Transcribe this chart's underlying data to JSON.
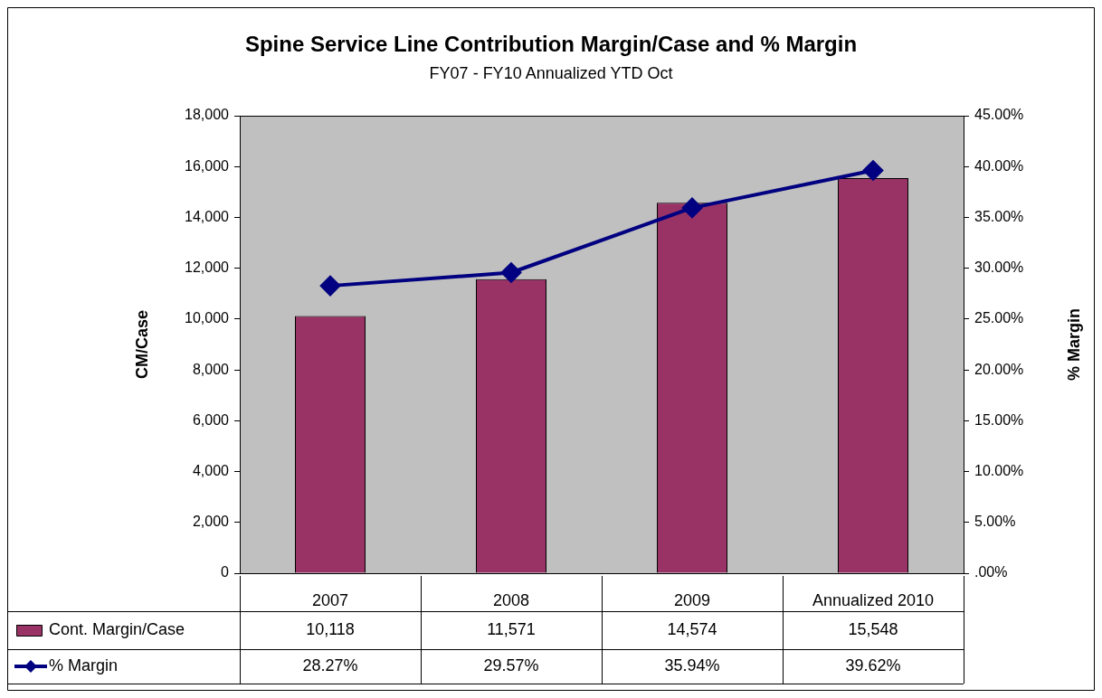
{
  "chart_data": {
    "type": "bar",
    "title": "Spine Service Line Contribution Margin/Case and % Margin",
    "subtitle": "FY07 - FY10 Annualized YTD Oct",
    "ylabel": "CM/Case",
    "y2label": "% Margin",
    "categories": [
      "2007",
      "2008",
      "2009",
      "Annualized 2010"
    ],
    "series": [
      {
        "name": "Cont. Margin/Case",
        "color": "#993366",
        "values": [
          10118,
          11571,
          14574,
          15548
        ],
        "value_labels": [
          "10,118",
          "11,571",
          "14,574",
          "15,548"
        ]
      },
      {
        "name": "% Margin",
        "type": "line",
        "axis": "y2",
        "color": "#000080",
        "marker": "diamond",
        "values": [
          28.27,
          29.57,
          35.94,
          39.62
        ],
        "value_labels": [
          "28.27%",
          "29.57%",
          "35.94%",
          "39.62%"
        ]
      }
    ],
    "ylim": [
      0,
      18000
    ],
    "yticks": [
      0,
      {
        "value": 2000,
        "label": "2,000"
      },
      {
        "value": 4000,
        "label": "4,000"
      },
      {
        "value": 6000,
        "label": "6,000"
      },
      {
        "value": 8000,
        "label": "8,000"
      },
      {
        "value": 10000,
        "label": "10,000"
      },
      {
        "value": 12000,
        "label": "12,000"
      },
      {
        "value": 14000,
        "label": "14,000"
      },
      {
        "value": 16000,
        "label": "16,000"
      },
      {
        "value": 18000,
        "label": "18,000"
      }
    ],
    "y2lim": [
      0,
      45
    ],
    "y2ticks": [
      {
        "value": 0,
        "label": ".00%"
      },
      {
        "value": 5,
        "label": "5.00%"
      },
      {
        "value": 10,
        "label": "10.00%"
      },
      {
        "value": 15,
        "label": "15.00%"
      },
      {
        "value": 20,
        "label": "20.00%"
      },
      {
        "value": 25,
        "label": "25.00%"
      },
      {
        "value": 30,
        "label": "30.00%"
      },
      {
        "value": 35,
        "label": "35.00%"
      },
      {
        "value": 40,
        "label": "40.00%"
      },
      {
        "value": 45,
        "label": "45.00%"
      }
    ],
    "legend": "bottom left",
    "grid": false
  }
}
